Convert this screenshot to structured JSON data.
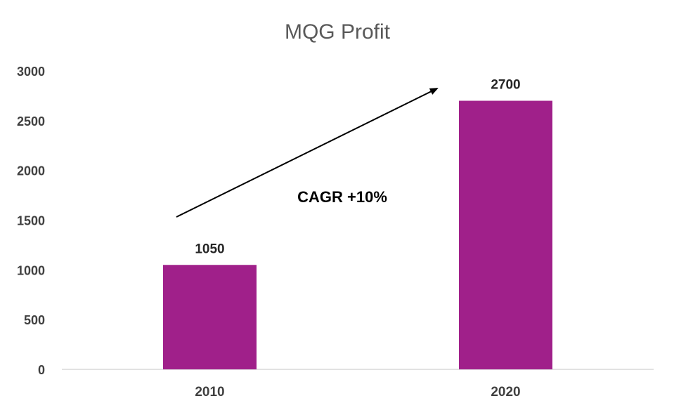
{
  "chart_data": {
    "type": "bar",
    "title": "MQG Profit",
    "categories": [
      "2010",
      "2020"
    ],
    "values": [
      1050,
      2700
    ],
    "data_labels": [
      "1050",
      "2700"
    ],
    "xlabel": "",
    "ylabel": "",
    "ylim": [
      0,
      3000
    ],
    "yticks": [
      "0",
      "500",
      "1000",
      "1500",
      "2000",
      "2500",
      "3000"
    ],
    "grid": false,
    "legend": "none",
    "bar_color": "#A0208A",
    "annotation": {
      "text": "CAGR +10%",
      "arrow": "up-right, from 2010 bar toward 2020 bar"
    }
  }
}
